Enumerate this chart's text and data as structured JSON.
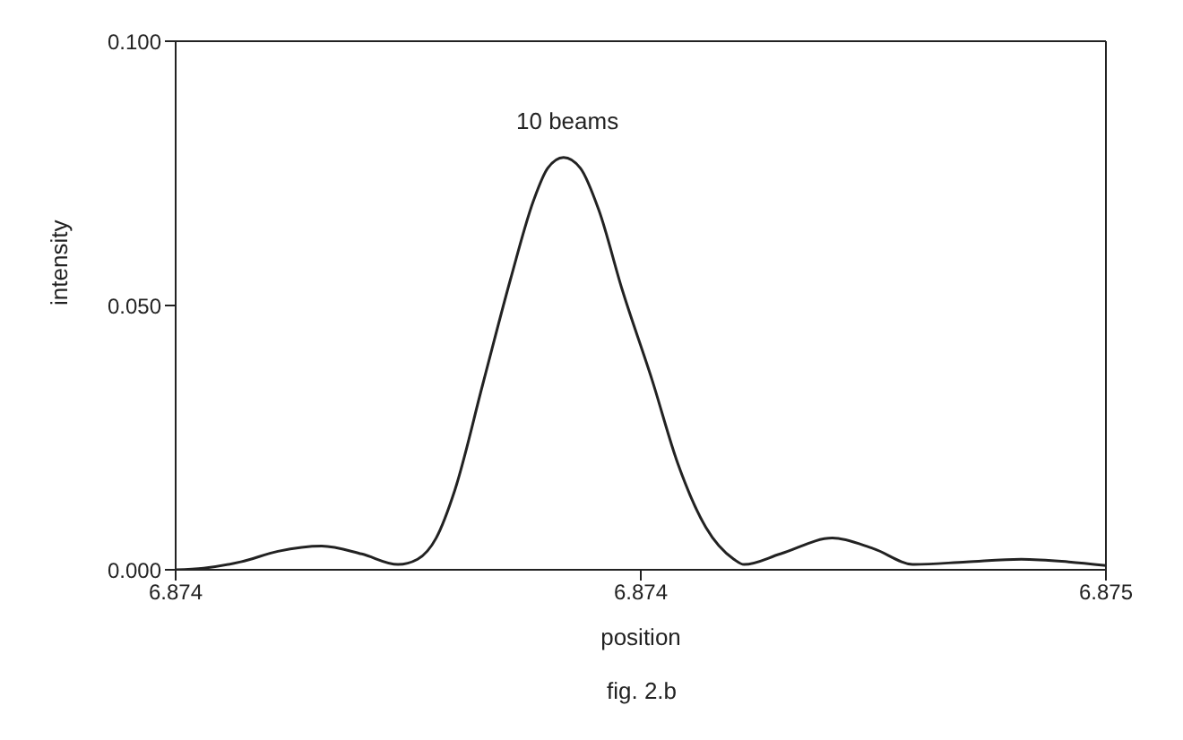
{
  "chart_data": {
    "type": "line",
    "xlabel": "position",
    "ylabel": "intensity",
    "annotations": [
      "10 beams",
      "fig. 2.b"
    ],
    "x": [
      6.874,
      6.87403,
      6.87407,
      6.87411,
      6.874157,
      6.8742,
      6.874239,
      6.87426,
      6.87428,
      6.8743,
      6.87433,
      6.87436,
      6.874385,
      6.8744,
      6.874417,
      6.874435,
      6.874455,
      6.87448,
      6.874512,
      6.87454,
      6.87457,
      6.8746,
      6.874611,
      6.87465,
      6.874706,
      6.87475,
      6.874794,
      6.87485,
      6.874909,
      6.87496,
      6.875
    ],
    "series": [
      {
        "color": "#222222",
        "values": [
          0,
          0.0003,
          0.0015,
          0.0035,
          0.0045,
          0.003,
          0.001,
          0.002,
          0.006,
          0.015,
          0.035,
          0.055,
          0.07,
          0.076,
          0.078,
          0.076,
          0.068,
          0.053,
          0.036,
          0.02,
          0.008,
          0.002,
          0.001,
          0.003,
          0.006,
          0.004,
          0.001,
          0.0015,
          0.002,
          0.0015,
          0.0008
        ]
      }
    ],
    "xlim": [
      6.874,
      6.875
    ],
    "xticks": [
      6.874,
      {
        "value": 6.8745,
        "label": "6.874"
      },
      6.875
    ],
    "ylim": [
      0,
      0.1
    ],
    "yticks": [
      {
        "value": 0,
        "label": "0.000"
      },
      {
        "value": 0.05,
        "label": "0.050"
      },
      {
        "value": 0.1,
        "label": "0.100"
      }
    ],
    "grid": false,
    "legend": false,
    "marker": "none",
    "line_style": "solid"
  }
}
